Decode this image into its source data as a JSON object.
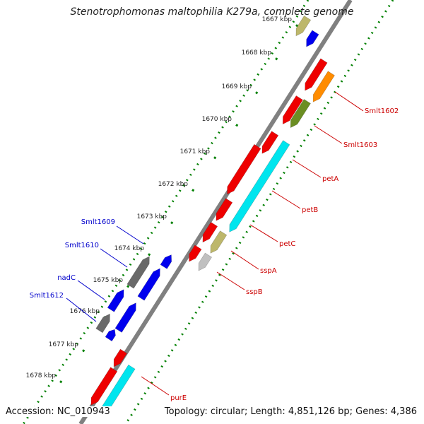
{
  "title": "Stenotrophomonas maltophilia K279a, complete genome",
  "footer": {
    "accession": "Accession: NC_010943",
    "summary": "Topology: circular; Length: 4,851,126 bp; Genes: 4,386"
  },
  "ruler": {
    "ticks": [
      "1667 kbp",
      "1668 kbp",
      "1669 kbp",
      "1670 kbp",
      "1671 kbp",
      "1672 kbp",
      "1673 kbp",
      "1674 kbp",
      "1675 kbp",
      "1676 kbp",
      "1677 kbp",
      "1678 kbp"
    ]
  },
  "genes": {
    "forward": [
      "Smlt1602",
      "Smlt1603",
      "petA",
      "petB",
      "petC",
      "sspA",
      "sspB",
      "purE"
    ],
    "reverse": [
      "Smlt1609",
      "Smlt1610",
      "nadC",
      "Smlt1612"
    ]
  },
  "colors": {
    "forward_label": "#cc0000",
    "reverse_label": "#0000cc",
    "backbone": "#808080",
    "ruler_dots": "#008000",
    "red": "#ee0000",
    "blue": "#0000ee",
    "orange": "#ff8c00",
    "olive": "#6b8e23",
    "cyan": "#00e5ee",
    "khaki": "#bdb76b",
    "gray": "#696969",
    "silver": "#c0c0c0"
  }
}
